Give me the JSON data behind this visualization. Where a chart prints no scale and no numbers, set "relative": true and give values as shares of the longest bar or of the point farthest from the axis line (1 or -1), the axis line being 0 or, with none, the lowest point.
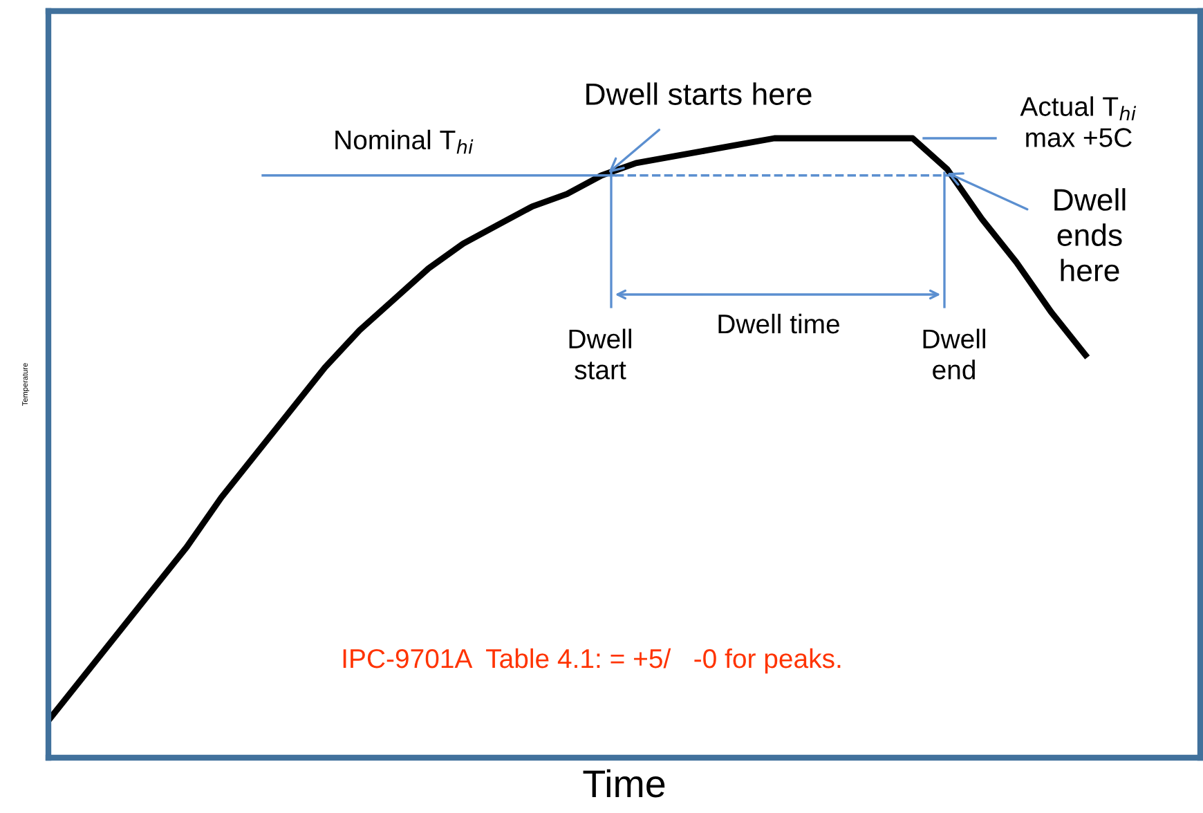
{
  "chart_data": {
    "type": "line",
    "relative": true,
    "xlabel": "Time",
    "ylabel": "Temperature",
    "categories": [
      null,
      null,
      null,
      null,
      null,
      null,
      null,
      null,
      null,
      null,
      null,
      null,
      null,
      null,
      null,
      null,
      null,
      null,
      null,
      null,
      null,
      null,
      null,
      null,
      null,
      null,
      null,
      null,
      null,
      null,
      null
    ],
    "series": [
      {
        "color": "#000000",
        "values": [
          0.06,
          0.13,
          0.2,
          0.27,
          0.34,
          0.42,
          0.49,
          0.56,
          0.63,
          0.69,
          0.74,
          0.79,
          0.83,
          0.86,
          0.89,
          0.91,
          0.94,
          0.96,
          0.97,
          0.98,
          0.99,
          1,
          1,
          1,
          1,
          1,
          0.95,
          0.87,
          0.8,
          0.72,
          0.65
        ]
      }
    ],
    "ref_lines": [
      {
        "axis": "y",
        "value": 0.94,
        "label": "Nominal T$_{hi}$",
        "color": "#5b8fd0"
      },
      {
        "axis": "y",
        "value": 1,
        "label": "Actual T$_{hi}$\nmax +5C",
        "color": "#5b8fd0"
      }
    ],
    "annotations": [
      "Dwell starts here",
      "Dwell\nends\nhere",
      "Dwell time",
      "Dwell\nstart",
      "Dwell\nend",
      "IPC-9701A  Table 4.1: = +5/   -0 for peaks."
    ],
    "marker": "none",
    "line_style": "solid"
  }
}
